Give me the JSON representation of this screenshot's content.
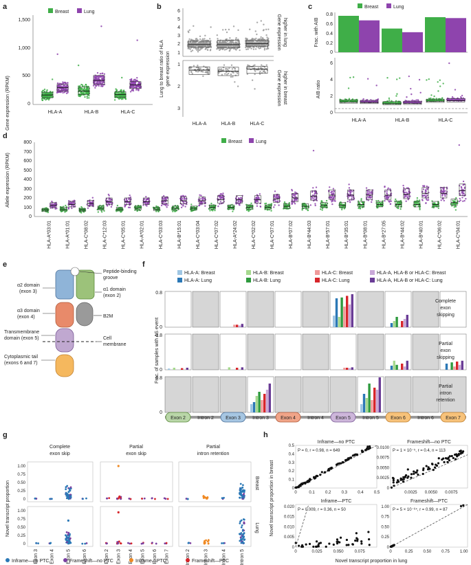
{
  "colors": {
    "breast": "#3fae48",
    "lung": "#8e44ad",
    "hla_a_breast": "#9fc6e3",
    "hla_a_lung": "#2b78b6",
    "hla_b_breast": "#a6d98e",
    "hla_b_lung": "#2e9a3e",
    "hla_c_breast": "#f09a9a",
    "hla_c_lung": "#d7262b",
    "any_breast": "#c9a8d8",
    "any_lung": "#6a3c96",
    "inframe_no_ptc": "#2b78b6",
    "frameshift_no_ptc": "#7a3fa0",
    "inframe_ptc": "#f08a24",
    "frameshift_ptc": "#d7262b",
    "domain_a2": "#8fb4d8",
    "domain_a1": "#9cc27a",
    "domain_a3": "#e88a6a",
    "domain_b2m": "#9a9a9a",
    "domain_tm": "#c0a8d0",
    "domain_tail": "#f5b85e"
  },
  "panels": {
    "a": "a",
    "b": "b",
    "c": "c",
    "d": "d",
    "e": "e",
    "f": "f",
    "g": "g",
    "h": "h"
  },
  "legend_breast": "Breast",
  "legend_lung": "Lung",
  "genes": [
    "HLA-A",
    "HLA-B",
    "HLA-C"
  ],
  "chart_data": [
    {
      "panel": "a",
      "type": "scatter",
      "ylabel": "Gene expression (RPKM)",
      "categories": [
        "HLA-A",
        "HLA-B",
        "HLA-C"
      ],
      "yticks": [
        "0",
        "500",
        "1,000",
        "1,500"
      ],
      "ylim": [
        0,
        1600
      ],
      "series": [
        {
          "name": "Breast",
          "medians": [
            170,
            240,
            180
          ],
          "q1": [
            120,
            180,
            130
          ],
          "q3": [
            220,
            310,
            230
          ],
          "max": [
            450,
            700,
            480
          ]
        },
        {
          "name": "Lung",
          "medians": [
            300,
            430,
            350
          ],
          "q1": [
            240,
            360,
            290
          ],
          "q3": [
            360,
            520,
            410
          ],
          "max": [
            900,
            1400,
            1150
          ]
        }
      ]
    },
    {
      "panel": "b",
      "type": "scatter",
      "ylabel": "Lung to breast ratio of HLA gene expression",
      "right_upper": "Gene expression higher in lung",
      "right_lower": "Gene expression higher in breast",
      "categories": [
        "HLA-A",
        "HLA-B",
        "HLA-C"
      ],
      "yticks_upper": [
        "1",
        "2",
        "3",
        "4",
        "5",
        "6"
      ],
      "yticks_lower": [
        "1",
        "2",
        "3"
      ],
      "upper": {
        "medians": [
          2.0,
          2.0,
          2.1
        ],
        "q1": [
          1.7,
          1.6,
          1.8
        ],
        "q3": [
          2.4,
          2.5,
          2.5
        ]
      },
      "lower": {
        "medians": [
          1.25,
          1.3,
          1.2
        ],
        "q1": [
          1.1,
          1.12,
          1.08
        ],
        "q3": [
          1.45,
          1.5,
          1.4
        ]
      }
    },
    {
      "panel": "c",
      "type": "bar",
      "ylabel_top": "Frac. with AIB",
      "ylabel_bottom": "AIB ratio",
      "categories": [
        "HLA-A",
        "HLA-B",
        "HLA-C"
      ],
      "yticks_top": [
        "0",
        "0.2",
        "0.4",
        "0.6",
        "0.8"
      ],
      "yticks_bottom": [
        "0",
        "2",
        "4",
        "6"
      ],
      "series": [
        {
          "name": "Breast",
          "values": [
            0.8,
            0.52,
            0.77
          ]
        },
        {
          "name": "Lung",
          "values": [
            0.7,
            0.44,
            0.75
          ]
        }
      ],
      "aib_medians": {
        "Breast": [
          1.3,
          1.1,
          1.4
        ],
        "Lung": [
          1.25,
          1.15,
          1.45
        ]
      }
    },
    {
      "panel": "d",
      "type": "scatter",
      "ylabel": "Allele expression (RPKM)",
      "yticks": [
        "0",
        "100",
        "200",
        "300",
        "400",
        "500",
        "600",
        "700",
        "800"
      ],
      "ylim": [
        0,
        800
      ],
      "categories": [
        "HLA-A*03:01",
        "HLA-A*01:01",
        "HLA-C*08:02",
        "HLA-C*12:03",
        "HLA-C*05:01",
        "HLA-A*02:01",
        "HLA-C*03:03",
        "HLA-B*15:01",
        "HLA-C*03:04",
        "HLA-C*07:02",
        "HLA-A*24:02",
        "HLA-C*02:02",
        "HLA-C*07:01",
        "HLA-B*07:02",
        "HLA-B*44:03",
        "HLA-B*57:01",
        "HLA-B*35:01",
        "HLA-B*08:01",
        "HLA-B*27:05",
        "HLA-B*44:02",
        "HLA-B*40:01",
        "HLA-C*06:02",
        "HLA-C*04:01"
      ],
      "series": [
        {
          "name": "Breast",
          "medians": [
            70,
            80,
            70,
            90,
            80,
            90,
            80,
            90,
            90,
            100,
            100,
            100,
            100,
            110,
            110,
            120,
            120,
            130,
            130,
            130,
            130,
            130,
            150
          ]
        },
        {
          "name": "Lung",
          "medians": [
            120,
            130,
            140,
            160,
            160,
            160,
            170,
            170,
            170,
            180,
            180,
            180,
            190,
            200,
            220,
            230,
            230,
            230,
            230,
            240,
            250,
            250,
            280
          ]
        }
      ]
    },
    {
      "panel": "f",
      "type": "bar",
      "ylabel": "Frac. of samples with AS event",
      "yticks": [
        "0",
        "0.8"
      ],
      "legend": [
        "HLA-A: Breast",
        "HLA-B: Breast",
        "HLA-C: Breast",
        "HLA-A, HLA-B or HLA-C: Breast",
        "HLA-A: Lung",
        "HLA-B: Lung",
        "HLA-C: Lung",
        "HLA-A, HLA-B or HLA-C: Lung"
      ],
      "rows": [
        "Complete exon skipping",
        "Partial exon skipping",
        "Partial intron retention"
      ],
      "segments": [
        "Exon 2",
        "Intron 2",
        "Exon 3",
        "Intron 3",
        "Exon 4",
        "Intron 4",
        "Exon 5",
        "Intron 5",
        "Exon 6",
        "Intron 6",
        "Exon 7"
      ],
      "na_cells": [
        [
          1,
          3,
          5,
          7,
          9
        ],
        [
          1,
          3,
          5,
          7,
          9
        ],
        [
          0,
          1,
          2,
          4,
          5,
          6,
          8,
          9,
          10
        ]
      ],
      "values": [
        [
          [
            0,
            0,
            0,
            0,
            0,
            0,
            0,
            0
          ],
          [
            0,
            0,
            0,
            0,
            0,
            0,
            0,
            0
          ],
          [
            0,
            0,
            0.06,
            0.04,
            0,
            0,
            0.06,
            0.08
          ],
          [
            0,
            0,
            0,
            0,
            0,
            0,
            0,
            0
          ],
          [
            0,
            0,
            0,
            0,
            0,
            0,
            0,
            0
          ],
          [
            0,
            0,
            0,
            0,
            0,
            0,
            0,
            0
          ],
          [
            0.28,
            0.25,
            0.5,
            0.55,
            0.7,
            0.72,
            0.76,
            0.8
          ],
          [
            0,
            0,
            0,
            0,
            0,
            0,
            0,
            0
          ],
          [
            0,
            0.15,
            0,
            0.2,
            0.1,
            0.25,
            0.15,
            0.3
          ],
          [
            0,
            0,
            0,
            0,
            0,
            0,
            0,
            0
          ],
          [
            0,
            0,
            0,
            0,
            0,
            0,
            0,
            0
          ]
        ],
        [
          [
            0.03,
            0.05,
            0,
            0,
            0,
            0,
            0.04,
            0.05
          ],
          [
            0,
            0,
            0,
            0,
            0,
            0,
            0,
            0
          ],
          [
            0,
            0.06,
            0,
            0,
            0,
            0,
            0.05,
            0.06
          ],
          [
            0,
            0,
            0,
            0,
            0,
            0,
            0,
            0
          ],
          [
            0,
            0,
            0,
            0,
            0,
            0,
            0,
            0
          ],
          [
            0,
            0,
            0,
            0,
            0,
            0,
            0,
            0
          ],
          [
            0,
            0,
            0.05,
            0.04,
            0,
            0,
            0.05,
            0.06
          ],
          [
            0,
            0,
            0,
            0,
            0,
            0,
            0,
            0
          ],
          [
            0,
            0.22,
            0,
            0.08,
            0.1,
            0.12,
            0.15,
            0.22
          ],
          [
            0,
            0,
            0,
            0,
            0,
            0,
            0,
            0
          ],
          [
            0,
            0,
            0.08,
            0.12,
            0.15,
            0.18,
            0.2,
            0.22
          ]
        ],
        [
          [
            0,
            0,
            0,
            0,
            0,
            0,
            0,
            0
          ],
          [
            0,
            0,
            0,
            0,
            0,
            0,
            0,
            0
          ],
          [
            0,
            0,
            0,
            0,
            0,
            0,
            0,
            0
          ],
          [
            0.2,
            0.4,
            0.3,
            0.55,
            0.25,
            0.5,
            0.45,
            0.7
          ],
          [
            0,
            0,
            0,
            0,
            0,
            0,
            0,
            0
          ],
          [
            0,
            0,
            0,
            0,
            0,
            0,
            0,
            0
          ],
          [
            0,
            0,
            0,
            0,
            0,
            0,
            0,
            0
          ],
          [
            0.2,
            0.35,
            0.3,
            0.55,
            0.45,
            0.7,
            0.6,
            0.85
          ],
          [
            0,
            0,
            0,
            0,
            0,
            0,
            0,
            0
          ],
          [
            0,
            0,
            0,
            0,
            0,
            0,
            0,
            0
          ],
          [
            0,
            0,
            0,
            0,
            0,
            0,
            0,
            0
          ]
        ]
      ]
    },
    {
      "panel": "g",
      "type": "scatter",
      "ylabel": "Novel transcript proportion",
      "yticks": [
        "0",
        "0.25",
        "0.50",
        "0.75",
        "1.00"
      ],
      "facets": [
        "Complete exon skip",
        "Partial exon skip",
        "Partial intron retention"
      ],
      "rows": [
        "Breast",
        "Lung"
      ],
      "x_categories": [
        [
          "Exon 3",
          "Exon 4",
          "Exon 5",
          "Exon 6"
        ],
        [
          "Exon 2",
          "Exon 3",
          "Exon 4",
          "Exon 5",
          "Exon 6",
          "Exon 7"
        ],
        [
          "Intron 2",
          "Intron 3",
          "Intron 4",
          "Intron 5"
        ]
      ],
      "legend": [
        "Inframe—no PTC",
        "Frameshift—no PTC",
        "Inframe—PTC",
        "Frameshift—PTC"
      ]
    },
    {
      "panel": "h",
      "type": "scatter",
      "xlabel": "Novel transcript proportion in lung",
      "ylabel": "Novel transcript proportion in breast",
      "subplots": [
        {
          "title": "Inframe—no PTC",
          "stat": "P = 0, r = 0.98, n = 649",
          "xticks": [
            "0",
            "0.1",
            "0.2",
            "0.3",
            "0.4",
            "0.5"
          ],
          "yticks": [
            "0",
            "0.1",
            "0.2",
            "0.3",
            "0.4",
            "0.5"
          ],
          "xlim": [
            0,
            0.5
          ],
          "ylim": [
            0,
            0.5
          ]
        },
        {
          "title": "Frameshift—no PTC",
          "stat": "P = 1 × 10⁻⁵, r = 0.4, n = 113",
          "xticks": [
            "0.0025",
            "0.0050",
            "0.0075"
          ],
          "yticks": [
            "0",
            "0.0025",
            "0.0050",
            "0.0075",
            "0.0100"
          ],
          "xlim": [
            0,
            0.0095
          ],
          "ylim": [
            0,
            0.0105
          ]
        },
        {
          "title": "Inframe—PTC",
          "stat": "P = 0.009, r = 0.36, n = 50",
          "xticks": [
            "0",
            "0.025",
            "0.050",
            "0.075"
          ],
          "yticks": [
            "0",
            "0.005",
            "0.010",
            "0.015",
            "0.020"
          ],
          "xlim": [
            0,
            0.095
          ],
          "ylim": [
            0,
            0.021
          ]
        },
        {
          "title": "Frameshift—PTC",
          "stat": "P = 5 × 10⁻⁶⁴, r = 0.99, n = 87",
          "xticks": [
            "0",
            "0.25",
            "0.50",
            "0.75",
            "1.00"
          ],
          "yticks": [
            "0",
            "0.25",
            "0.50",
            "0.75",
            "1.00"
          ],
          "xlim": [
            0,
            1.05
          ],
          "ylim": [
            0,
            1.05
          ]
        }
      ]
    }
  ],
  "diagram_e": {
    "a2": "α2 domain (exon 3)",
    "a1": "α1 domain (exon 2)",
    "groove": "Peptide-binding groove",
    "a3": "α3 domain (exon 4)",
    "b2m": "B2M",
    "tm": "Transmembrane domain (exon 5)",
    "membrane": "Cell membrane",
    "tail": "Cytoplasmic tail (exons 6 and 7)"
  }
}
